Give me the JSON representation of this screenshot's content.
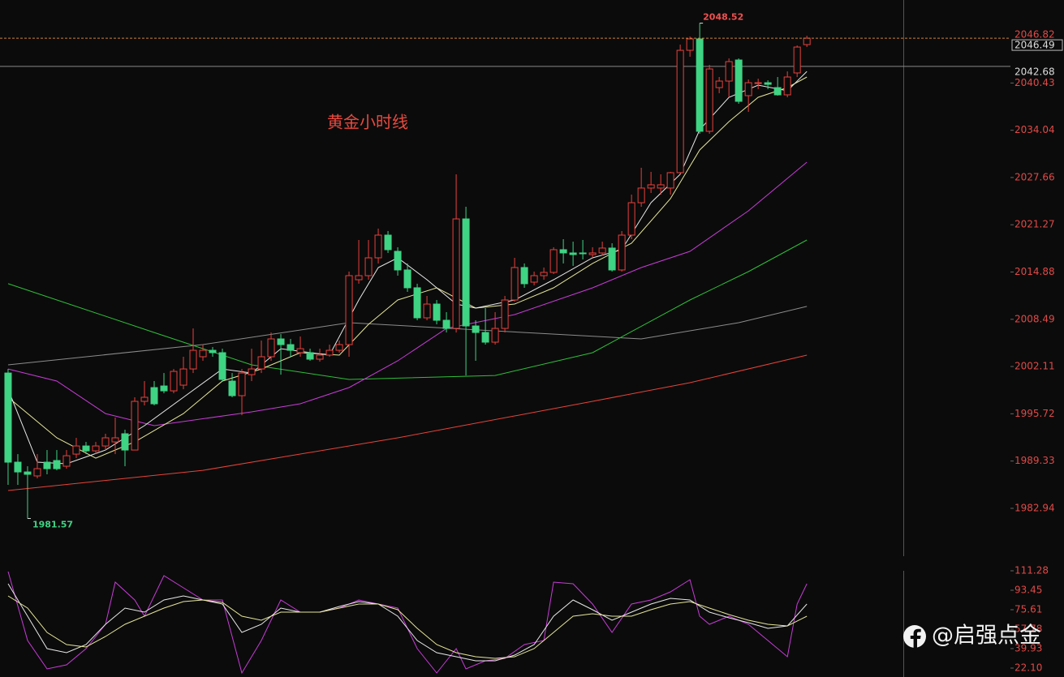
{
  "chart_data": [
    {
      "type": "candlestick",
      "title": "黄金小时线",
      "xlim": [
        -0.83,
        91.9
      ],
      "ylim": [
        1976.58,
        2051.65
      ],
      "yticks": [
        2040.43,
        2034.04,
        2027.66,
        2021.27,
        2014.88,
        2008.49,
        2002.11,
        1995.72,
        1989.33,
        1982.94
      ],
      "reference_price": 2042.68,
      "up_color": "#e8413d",
      "down_color": "#3fd384",
      "candles": {
        "open": [
          2001.23,
          1989.18,
          1987.86,
          1987.32,
          1989.18,
          1989.4,
          1988.63,
          1990.27,
          1991.37,
          1990.71,
          1991.37,
          1991.92,
          1993.02,
          1990.82,
          1997.4,
          1999.26,
          1999.48,
          1998.82,
          1999.59,
          2001.78,
          2003.43,
          2004.3,
          2003.98,
          2000.14,
          1998.17,
          2001.01,
          2001.78,
          2003.43,
          2005.84,
          2005.07,
          2003.98,
          2003.98,
          2003.1,
          2003.65,
          2004.3,
          2005.07,
          2013.84,
          2014.39,
          2016.8,
          2019.87,
          2017.68,
          2015.16,
          2012.75,
          2008.69,
          2010.55,
          2008.36,
          2007.26,
          2022.06,
          2007.59,
          2006.71,
          2005.4,
          2007.26,
          2011.1,
          2015.49,
          2013.51,
          2014.39,
          2014.83,
          2017.9,
          2017.46,
          2017.46,
          2017.24,
          2017.46,
          2018.12,
          2015.16,
          2019.87,
          2024.25,
          2026.23,
          2026.23,
          2026.23,
          2028.31,
          2044.85,
          2046.39,
          2033.9,
          2039.81,
          2040.69,
          2043.54,
          2038.72,
          2040.36,
          2040.47,
          2039.81,
          2038.83,
          2041.79,
          2045.62
        ],
        "close": [
          1989.18,
          1987.86,
          1987.54,
          1988.3,
          1988.3,
          1988.3,
          1990.05,
          1991.37,
          1990.71,
          1991.37,
          1992.47,
          1992.47,
          1990.82,
          1997.4,
          1997.95,
          1997.07,
          1998.82,
          2001.45,
          2001.78,
          2004.3,
          2004.3,
          2003.98,
          2000.36,
          1998.17,
          2001.23,
          2001.78,
          2003.43,
          2005.84,
          2005.07,
          2004.3,
          2004.52,
          2003.1,
          2003.65,
          2004.3,
          2005.07,
          2014.39,
          2014.39,
          2016.8,
          2019.87,
          2017.9,
          2015.16,
          2012.75,
          2008.69,
          2010.55,
          2008.36,
          2007.26,
          2022.06,
          2007.59,
          2006.71,
          2005.4,
          2007.26,
          2011.1,
          2015.49,
          2013.3,
          2014.39,
          2014.83,
          2017.9,
          2017.46,
          2017.24,
          2017.35,
          2017.46,
          2018.12,
          2015.16,
          2019.87,
          2024.25,
          2026.23,
          2026.67,
          2026.67,
          2028.31,
          2044.85,
          2046.39,
          2033.9,
          2042.33,
          2040.69,
          2043.32,
          2037.95,
          2040.47,
          2040.47,
          2040.25,
          2038.83,
          2041.24,
          2045.29,
          2046.49
        ],
        "high": [
          2001.78,
          1990.27,
          1988.63,
          1990.27,
          1990.82,
          1990.82,
          1990.82,
          1992.47,
          1991.92,
          1991.92,
          1993.02,
          1995.21,
          1993.57,
          1997.95,
          2000.14,
          2000.14,
          2001.23,
          2001.78,
          2003.43,
          2007.26,
          2005.07,
          2004.74,
          2004.52,
          2001.23,
          2001.78,
          2004.52,
          2005.62,
          2006.71,
          2006.49,
          2005.84,
          2006.17,
          2004.52,
          2004.52,
          2005.07,
          2005.62,
          2014.94,
          2019.21,
          2019.21,
          2020.75,
          2020.42,
          2018.23,
          2016.04,
          2013.3,
          2011.65,
          2011.1,
          2009.46,
          2028.09,
          2023.7,
          2008.36,
          2010.01,
          2009.46,
          2011.65,
          2016.8,
          2016.04,
          2014.94,
          2015.49,
          2018.23,
          2019.32,
          2018.99,
          2019.21,
          2018.23,
          2018.99,
          2018.77,
          2020.42,
          2025.35,
          2028.97,
          2028.42,
          2028.09,
          2028.42,
          2045.62,
          2046.72,
          2048.52,
          2042.88,
          2041.24,
          2043.76,
          2043.76,
          2040.91,
          2041.02,
          2040.8,
          2041.24,
          2042.0,
          2045.51,
          2046.82
        ],
        "low": [
          1986.11,
          1986.11,
          1981.57,
          1986.99,
          1987.54,
          1988.08,
          1988.3,
          1989.72,
          1990.27,
          1990.27,
          1990.82,
          1990.27,
          1988.63,
          1990.82,
          1996.85,
          1996.85,
          1998.49,
          1998.49,
          1999.04,
          2001.23,
          2002.88,
          2003.43,
          2000.14,
          1997.95,
          1995.53,
          2000.14,
          2001.23,
          2002.88,
          2001.01,
          2003.43,
          2003.43,
          2002.88,
          2002.77,
          2003.43,
          2003.98,
          2003.43,
          2013.3,
          2013.84,
          2016.04,
          2017.46,
          2014.39,
          2012.2,
          2008.36,
          2008.36,
          2007.81,
          2006.71,
          2006.71,
          2000.9,
          2002.88,
          2005.07,
          2005.07,
          2006.71,
          2010.88,
          2012.75,
          2013.08,
          2013.84,
          2014.61,
          2016.04,
          2015.71,
          2016.58,
          2016.8,
          2017.13,
          2014.94,
          2014.94,
          2019.32,
          2023.7,
          2025.57,
          2025.35,
          2025.35,
          2028.09,
          2043.98,
          2033.57,
          2033.57,
          2039.05,
          2038.5,
          2037.62,
          2036.53,
          2039.59,
          2039.59,
          2038.72,
          2038.5,
          2041.24,
          2045.29
        ]
      },
      "moving_averages": [
        {
          "color": "#e8433a",
          "x": [
            0,
            20,
            40,
            60,
            70,
            82
          ],
          "values": [
            1985.35,
            1988.08,
            1992.47,
            1997.4,
            1999.92,
            2003.65
          ]
        },
        {
          "color": "#8c8c8c",
          "x": [
            0,
            20,
            35,
            50,
            65,
            75,
            82
          ],
          "values": [
            2002.33,
            2005.07,
            2008.03,
            2006.93,
            2005.84,
            2008.03,
            2010.23
          ]
        },
        {
          "color": "#2fbf3a",
          "x": [
            0,
            15,
            25,
            35,
            50,
            60,
            70,
            76,
            82
          ],
          "values": [
            2013.3,
            2006.71,
            2002.33,
            2000.36,
            2000.9,
            2003.98,
            2011.1,
            2014.94,
            2019.21
          ]
        },
        {
          "color": "#c83cd8",
          "x": [
            0,
            5,
            10,
            15,
            25,
            30,
            35,
            40,
            45,
            52,
            60,
            65,
            70,
            76,
            82
          ],
          "values": [
            2001.78,
            2000.14,
            1995.75,
            1994.12,
            1995.98,
            1997.07,
            1999.26,
            2002.88,
            2007.26,
            2009.13,
            2012.75,
            2015.49,
            2017.68,
            2023.16,
            2029.73
          ]
        },
        {
          "color": "#e6e69a",
          "x": [
            0,
            5,
            9,
            13,
            18,
            22,
            26,
            30,
            34,
            37,
            40,
            44,
            48,
            52,
            56,
            60,
            64,
            68,
            71,
            74,
            77,
            80,
            82
          ],
          "values": [
            1997.95,
            1992.47,
            1989.72,
            1991.92,
            1995.75,
            2000.14,
            2001.78,
            2003.98,
            2003.65,
            2007.81,
            2011.1,
            2012.75,
            2010.01,
            2010.55,
            2012.75,
            2016.04,
            2018.77,
            2024.8,
            2031.38,
            2035.21,
            2038.5,
            2039.81,
            2041.24
          ]
        },
        {
          "color": "#e8e8e8",
          "x": [
            0,
            3,
            6,
            10,
            14,
            18,
            22,
            25,
            28,
            33,
            36,
            38,
            40,
            43,
            46,
            48,
            52,
            56,
            60,
            63,
            66,
            69,
            71,
            74,
            77,
            80,
            82
          ],
          "values": [
            1999.04,
            1989.18,
            1988.96,
            1990.82,
            1994.12,
            1997.95,
            2001.78,
            2001.23,
            2004.52,
            2003.65,
            2011.1,
            2015.49,
            2016.8,
            2013.84,
            2010.55,
            2010.01,
            2011.1,
            2013.84,
            2016.8,
            2017.9,
            2024.25,
            2028.09,
            2034.12,
            2038.5,
            2040.14,
            2039.38,
            2042.0
          ]
        }
      ]
    },
    {
      "type": "line",
      "xlim": [
        -0.83,
        91.9
      ],
      "ylim": [
        13.92,
        117.97
      ],
      "yticks": [
        111.28,
        93.45,
        75.61,
        57.78,
        39.93,
        {
          "value": 22.1,
          "label": "22.10"
        }
      ],
      "series": [
        {
          "color": "#c83cd8",
          "x": [
            0,
            2,
            4,
            6,
            8,
            10,
            11,
            13,
            14,
            16,
            18,
            20,
            22,
            24,
            26,
            28,
            30,
            32,
            34,
            36,
            38,
            40,
            42,
            44,
            46,
            47,
            49,
            51,
            53,
            55,
            56,
            58,
            60,
            62,
            64,
            66,
            68,
            70,
            71,
            72,
            74,
            76,
            78,
            80,
            81,
            82
          ],
          "values": [
            110.54,
            47.37,
            21.36,
            25.07,
            39.94,
            62.23,
            100.88,
            84.53,
            69.66,
            106.82,
            95.68,
            84.53,
            84.53,
            17.64,
            47.37,
            84.53,
            73.38,
            73.38,
            77.1,
            84.53,
            80.81,
            77.1,
            39.94,
            17.64,
            39.94,
            21.36,
            28.79,
            31.02,
            43.65,
            47.37,
            100.88,
            99.39,
            80.81,
            54.8,
            80.81,
            84.53,
            91.96,
            103.11,
            69.66,
            62.23,
            69.66,
            62.23,
            47.37,
            32.5,
            80.81,
            99.39
          ]
        },
        {
          "color": "#e8e8e8",
          "x": [
            0,
            2,
            4,
            6,
            8,
            10,
            12,
            14,
            16,
            18,
            20,
            22,
            24,
            26,
            28,
            30,
            32,
            34,
            36,
            38,
            40,
            42,
            44,
            46,
            48,
            50,
            52,
            54,
            56,
            58,
            60,
            62,
            64,
            66,
            68,
            70,
            72,
            74,
            76,
            78,
            80,
            82
          ],
          "values": [
            99.39,
            69.66,
            39.94,
            36.22,
            43.65,
            62.23,
            77.1,
            73.38,
            84.53,
            88.24,
            84.53,
            80.81,
            54.8,
            62.23,
            77.1,
            73.38,
            73.38,
            78.58,
            83.04,
            80.81,
            69.66,
            47.37,
            36.22,
            32.5,
            28.79,
            28.79,
            33.99,
            43.65,
            69.66,
            84.53,
            75.61,
            65.95,
            73.38,
            80.81,
            86.02,
            84.53,
            73.38,
            68.18,
            63.72,
            58.52,
            60.75,
            80.81
          ]
        },
        {
          "color": "#e6e69a",
          "x": [
            0,
            2,
            4,
            6,
            8,
            10,
            12,
            14,
            16,
            18,
            20,
            22,
            24,
            26,
            28,
            30,
            32,
            34,
            36,
            38,
            40,
            42,
            44,
            46,
            48,
            50,
            52,
            54,
            56,
            58,
            60,
            62,
            64,
            66,
            68,
            70,
            72,
            74,
            76,
            78,
            80,
            82
          ],
          "values": [
            88.24,
            77.1,
            54.8,
            43.65,
            41.42,
            51.08,
            62.23,
            69.66,
            77.1,
            83.04,
            84.53,
            82.3,
            69.66,
            65.95,
            73.38,
            73.38,
            73.38,
            77.1,
            80.81,
            80.81,
            75.61,
            58.52,
            43.65,
            36.22,
            32.5,
            31.02,
            32.5,
            39.94,
            54.8,
            69.66,
            71.89,
            69.66,
            69.66,
            75.61,
            80.81,
            83.04,
            77.1,
            71.15,
            65.95,
            62.23,
            60.75,
            69.66
          ]
        }
      ]
    }
  ],
  "watermark": "@启强点金"
}
